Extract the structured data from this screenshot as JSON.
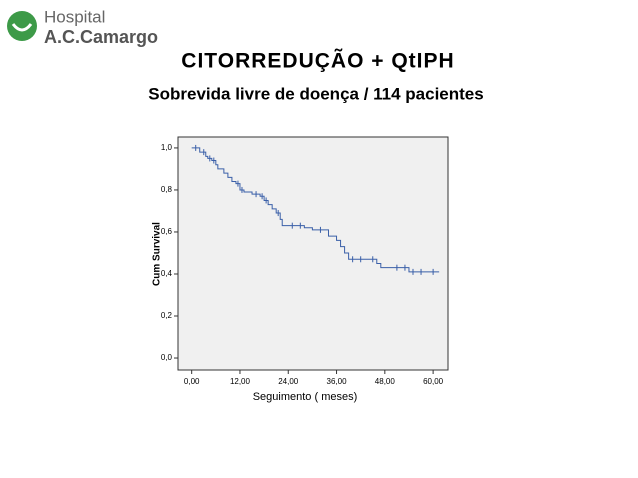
{
  "header": {
    "logo_line1": "Hospital",
    "logo_line2": "A.C.Camargo"
  },
  "chart_data": {
    "type": "step",
    "title": "CITORREDUÇÃO + QtIPH",
    "subtitle": "Sobrevida livre de doença / 114 pacientes",
    "x_label": "Seguimento ( meses)",
    "y_label": "Cum Survival",
    "color": "#3a5fa8",
    "x": [
      0,
      2,
      3.5,
      4,
      5,
      6,
      6.5,
      8,
      9,
      10,
      11,
      12,
      13,
      15,
      17,
      18,
      19,
      20,
      21,
      22,
      22.5,
      28,
      30,
      34,
      36,
      37,
      38,
      39,
      46,
      47,
      54,
      61.5
    ],
    "values": [
      1.0,
      0.98,
      0.96,
      0.95,
      0.94,
      0.92,
      0.9,
      0.88,
      0.86,
      0.84,
      0.83,
      0.8,
      0.79,
      0.78,
      0.77,
      0.75,
      0.73,
      0.71,
      0.69,
      0.66,
      0.63,
      0.62,
      0.61,
      0.58,
      0.56,
      0.53,
      0.5,
      0.47,
      0.45,
      0.43,
      0.41,
      0.41
    ],
    "censored": {
      "x": [
        1,
        3,
        4.5,
        5.5,
        11.5,
        12.5,
        16,
        17.5,
        18.5,
        21.5,
        25,
        27,
        32,
        40,
        42,
        45,
        51,
        53,
        55,
        57,
        60
      ],
      "values": [
        1.0,
        0.98,
        0.95,
        0.94,
        0.83,
        0.8,
        0.78,
        0.77,
        0.75,
        0.69,
        0.63,
        0.63,
        0.61,
        0.47,
        0.47,
        0.47,
        0.43,
        0.43,
        0.41,
        0.41,
        0.41
      ]
    },
    "xlim": [
      -3.4,
      63.7
    ],
    "ylim": [
      -0.057,
      1.052
    ],
    "xticks": [
      {
        "value": 0,
        "label": "0,00"
      },
      {
        "value": 12,
        "label": "12,00"
      },
      {
        "value": 24,
        "label": "24,00"
      },
      {
        "value": 36,
        "label": "36,00"
      },
      {
        "value": 48,
        "label": "48,00"
      },
      {
        "value": 60,
        "label": "60,00"
      }
    ],
    "yticks": [
      {
        "value": 0,
        "label": "0,0"
      },
      {
        "value": 0.2,
        "label": "0,2"
      },
      {
        "value": 0.4,
        "label": "0,4"
      },
      {
        "value": 0.6,
        "label": "0,6"
      },
      {
        "value": 0.8,
        "label": "0,8"
      },
      {
        "value": 1.0,
        "label": "1,0"
      }
    ],
    "plot_background": "#f0f0f0"
  }
}
